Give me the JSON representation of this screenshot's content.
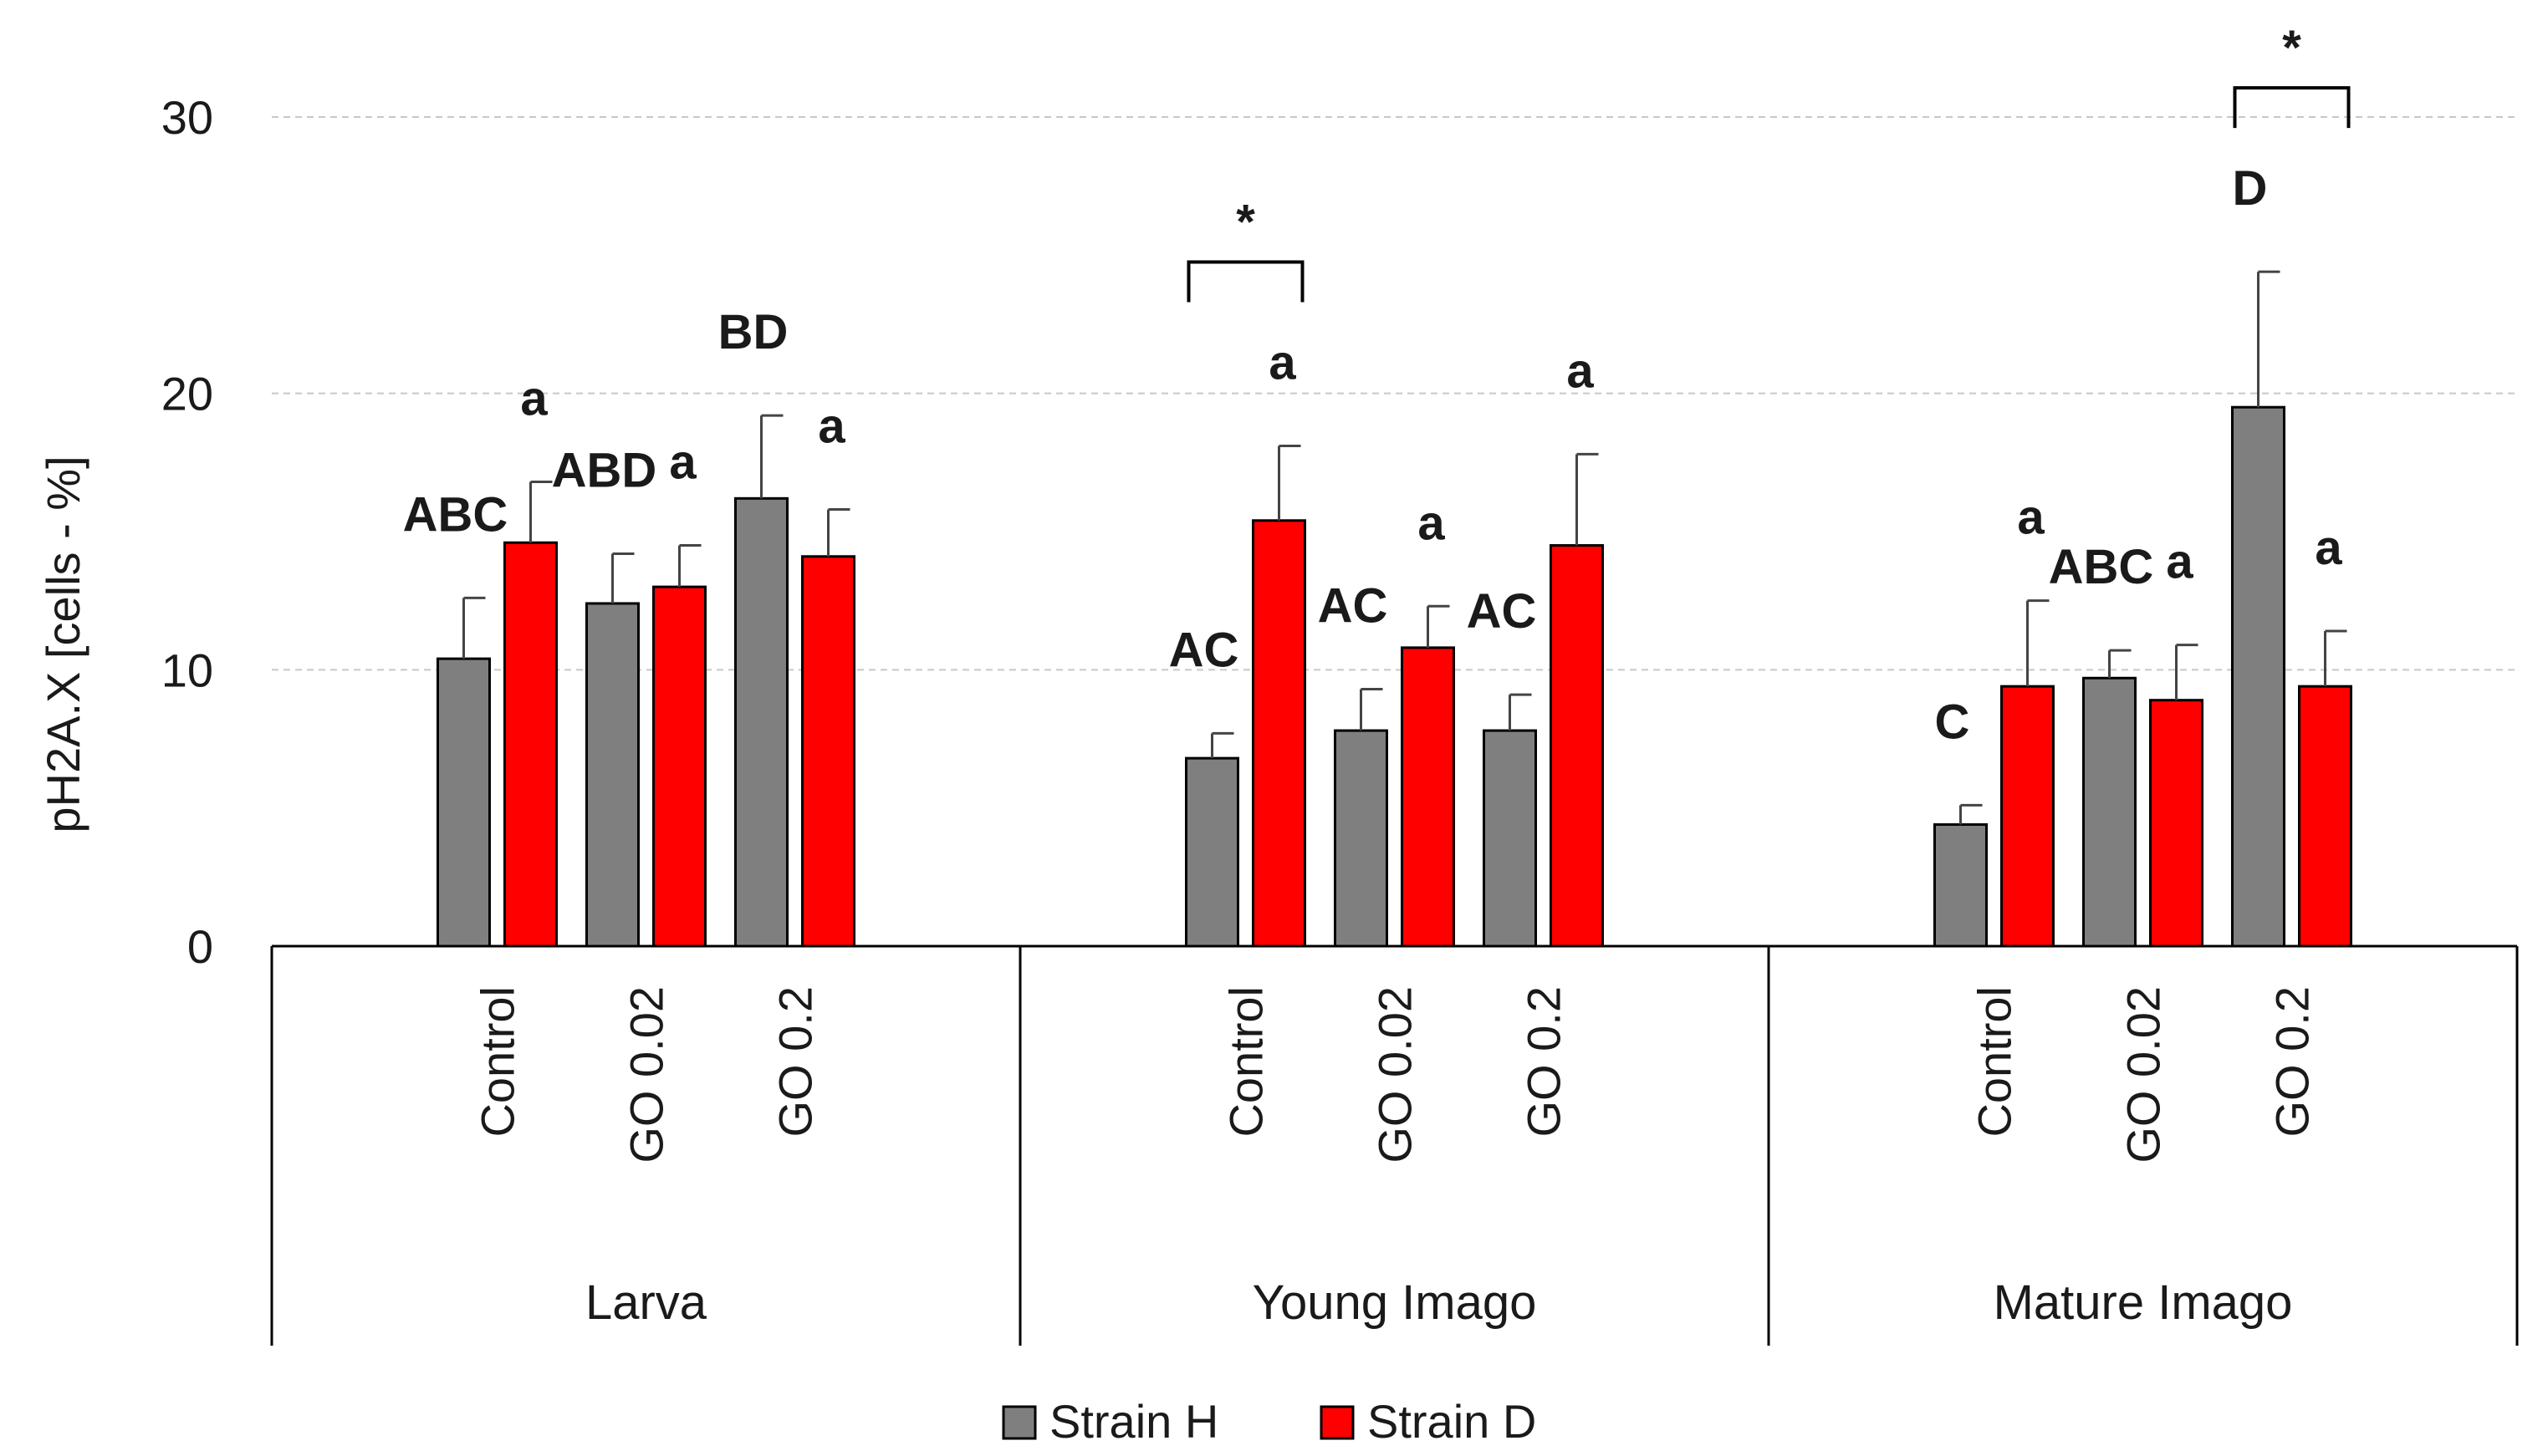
{
  "chart_data": {
    "type": "bar",
    "ylabel": "pH2A.X  [cells - %]",
    "ylim": [
      0,
      30
    ],
    "yticks": [
      0,
      10,
      20,
      30
    ],
    "grid": true,
    "legend_position": "bottom",
    "groups": [
      {
        "label": "Larva",
        "categories": [
          "Control",
          "GO 0.02",
          "GO 0.2"
        ]
      },
      {
        "label": "Young Imago",
        "categories": [
          "Control",
          "GO 0.02",
          "GO 0.2"
        ]
      },
      {
        "label": "Mature Imago",
        "categories": [
          "Control",
          "GO 0.02",
          "GO 0.2"
        ]
      }
    ],
    "series": [
      {
        "name": "Strain H",
        "color": "#7f7f7f",
        "values": [
          10.4,
          12.4,
          16.2,
          6.8,
          7.8,
          7.8,
          4.4,
          9.7,
          19.5
        ],
        "errors": [
          2.2,
          1.8,
          3.0,
          0.9,
          1.5,
          1.3,
          0.7,
          1.0,
          4.9
        ],
        "labels": [
          "ABC",
          "ABD",
          "BD",
          "AC",
          "AC",
          "AC",
          "C",
          "ABC",
          "D"
        ]
      },
      {
        "name": "Strain D",
        "color": "#ff0000",
        "values": [
          14.6,
          13.0,
          14.1,
          15.4,
          10.8,
          14.5,
          9.4,
          8.9,
          9.4
        ],
        "errors": [
          2.2,
          1.5,
          1.7,
          2.7,
          1.5,
          3.3,
          3.1,
          2.0,
          2.0
        ],
        "labels": [
          "a",
          "a",
          "a",
          "a",
          "a",
          "a",
          "a",
          "a",
          "a"
        ]
      }
    ],
    "significance": [
      {
        "symbol": "*",
        "group": 1,
        "category": 0
      },
      {
        "symbol": "*",
        "group": 2,
        "category": 2
      }
    ]
  }
}
